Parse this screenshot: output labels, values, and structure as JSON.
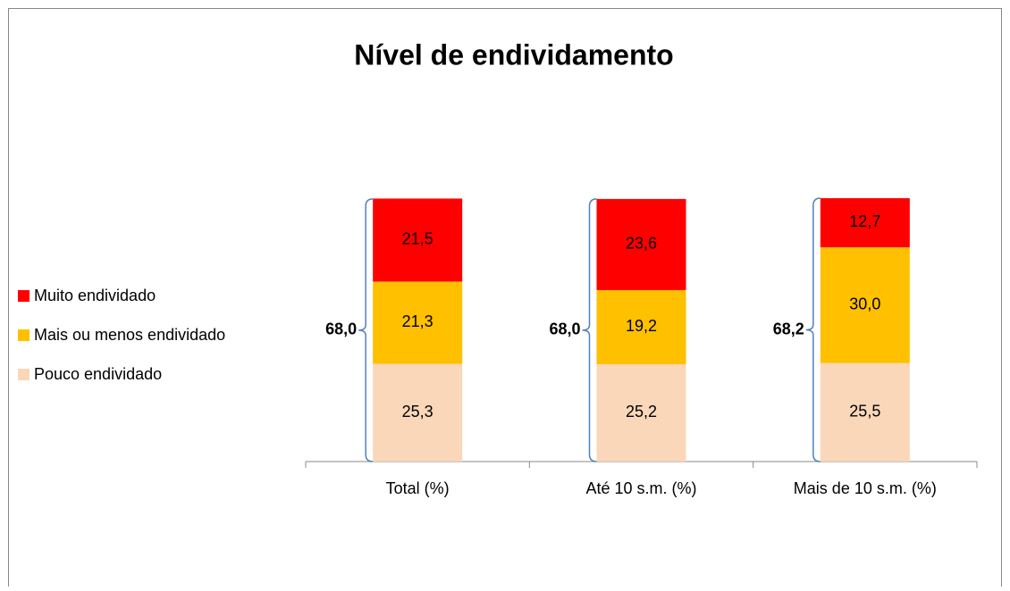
{
  "chart_data": {
    "type": "stacked_bar",
    "title": "Nível de endividamento",
    "categories": [
      "Total (%)",
      "Até 10 s.m. (%)",
      "Mais de 10 s.m. (%)"
    ],
    "series": [
      {
        "name": "Pouco endividado",
        "color": "#fad7b9",
        "values": [
          25.3,
          25.2,
          25.5
        ],
        "value_labels": [
          "25,3",
          "25,2",
          "25,5"
        ]
      },
      {
        "name": "Mais ou menos endividado",
        "color": "#ffc000",
        "values": [
          21.3,
          19.2,
          30.0
        ],
        "value_labels": [
          "21,3",
          "19,2",
          "30,0"
        ]
      },
      {
        "name": "Muito endividado",
        "color": "#ff0000",
        "values": [
          21.5,
          23.6,
          12.7
        ],
        "value_labels": [
          "21,5",
          "23,6",
          "12,7"
        ]
      }
    ],
    "totals": [
      68.0,
      68.0,
      68.2
    ],
    "total_labels": [
      "68,0",
      "68,0",
      "68,2"
    ],
    "ylim": [
      0,
      68.2
    ],
    "legend": "left"
  }
}
